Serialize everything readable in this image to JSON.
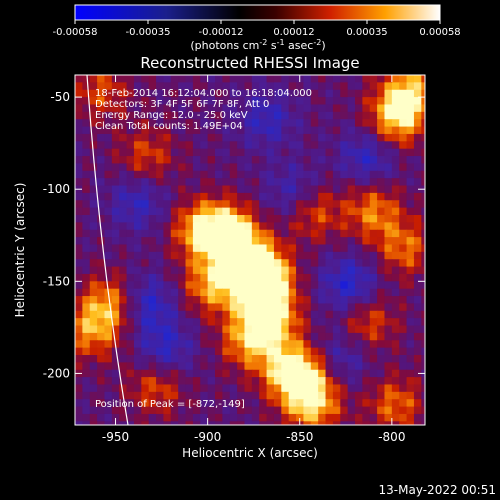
{
  "colorbar": {
    "tick_labels": [
      "-0.00058",
      "-0.00035",
      "-0.00012",
      "0.00012",
      "0.00035",
      "0.00058"
    ],
    "units_text": "(photons cm",
    "units_sup1": "-2",
    "units_mid": " s",
    "units_sup2": "-1",
    "units_mid2": " asec",
    "units_sup3": "-2",
    "units_end": ")",
    "range": [
      -0.00058,
      0.00058
    ]
  },
  "chart_data": {
    "type": "heatmap",
    "title": "Reconstructed RHESSI Image",
    "xlabel": "Heliocentric X (arcsec)",
    "ylabel": "Heliocentric Y (arcsec)",
    "xlim": [
      -972,
      -782
    ],
    "ylim": [
      -228,
      -38
    ],
    "x_ticks": [
      -950,
      -900,
      -850,
      -800
    ],
    "y_ticks": [
      -50,
      -100,
      -150,
      -200
    ],
    "x_tick_labels": [
      "-950",
      "-900",
      "-850",
      "-800"
    ],
    "y_tick_labels": [
      "-50",
      "-100",
      "-150",
      "-200"
    ],
    "info_lines": [
      "18-Feb-2014 16:12:04.000 to 16:18:04.000",
      "Detectors: 3F 4F 5F 6F 7F 8F, Att 0",
      "Energy Range: 12.0 - 25.0 keV",
      "Clean      Total counts: 1.49E+04"
    ],
    "peak_text": "Position of Peak = [-872,-149]",
    "peak": [
      -872,
      -149
    ],
    "hot_regions": [
      {
        "x": -890,
        "y": -122,
        "level": 0.95
      },
      {
        "x": -878,
        "y": -140,
        "level": 1.0
      },
      {
        "x": -872,
        "y": -149,
        "level": 1.0
      },
      {
        "x": -868,
        "y": -168,
        "level": 0.85
      },
      {
        "x": -905,
        "y": -120,
        "level": 0.8
      },
      {
        "x": -900,
        "y": -150,
        "level": 0.7
      },
      {
        "x": -880,
        "y": -180,
        "level": 0.65
      },
      {
        "x": -860,
        "y": -195,
        "level": 0.55
      },
      {
        "x": -800,
        "y": -60,
        "level": 0.8
      },
      {
        "x": -792,
        "y": -45,
        "level": 0.75
      },
      {
        "x": -812,
        "y": -110,
        "level": 0.6
      },
      {
        "x": -795,
        "y": -130,
        "level": 0.55
      },
      {
        "x": -845,
        "y": -110,
        "level": 0.55
      },
      {
        "x": -850,
        "y": -200,
        "level": 0.8
      },
      {
        "x": -845,
        "y": -215,
        "level": 0.75
      },
      {
        "x": -955,
        "y": -160,
        "level": 0.65
      },
      {
        "x": -965,
        "y": -175,
        "level": 0.6
      },
      {
        "x": -935,
        "y": -80,
        "level": 0.45
      },
      {
        "x": -960,
        "y": -45,
        "level": 0.45
      },
      {
        "x": -815,
        "y": -170,
        "level": 0.5
      },
      {
        "x": -800,
        "y": -215,
        "level": 0.55
      },
      {
        "x": -930,
        "y": -205,
        "level": 0.5
      }
    ],
    "cold_regions": [
      {
        "x": -935,
        "y": -160,
        "level": -0.55
      },
      {
        "x": -925,
        "y": -185,
        "level": -0.5
      },
      {
        "x": -825,
        "y": -150,
        "level": -0.6
      },
      {
        "x": -855,
        "y": -100,
        "level": -0.45
      },
      {
        "x": -940,
        "y": -105,
        "level": -0.45
      },
      {
        "x": -815,
        "y": -80,
        "level": -0.5
      },
      {
        "x": -830,
        "y": -190,
        "level": -0.4
      },
      {
        "x": -870,
        "y": -60,
        "level": -0.45
      }
    ]
  },
  "footer": {
    "timestamp": "13-May-2022 00:51"
  },
  "colors": {
    "background": "#000000",
    "text": "#ffffff",
    "limb": "#ffffff"
  }
}
